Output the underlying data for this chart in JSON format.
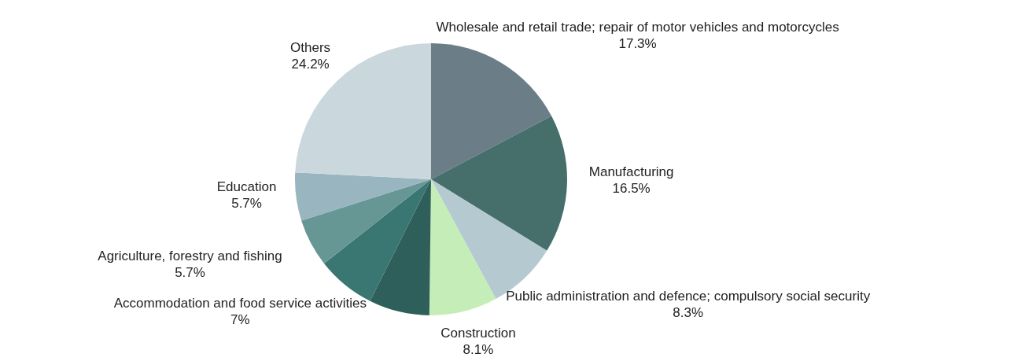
{
  "chart_data": {
    "type": "pie",
    "categories": [
      "Wholesale and retail trade; repair of motor vehicles and motorcycles",
      "Manufacturing",
      "Public administration and defence; compulsory social security",
      "Construction",
      null,
      "Accommodation and food service activities",
      "Agriculture, forestry and fishing",
      "Education",
      "Others"
    ],
    "values": [
      17.3,
      16.5,
      8.3,
      8.1,
      7.2,
      7,
      5.7,
      5.7,
      24.2
    ],
    "value_labels": [
      "17.3%",
      "16.5%",
      "8.3%",
      "8.1%",
      null,
      "7%",
      "5.7%",
      "5.7%",
      "24.2%"
    ],
    "colors": [
      "#6b7d87",
      "#466f6c",
      "#b5c9d0",
      "#c5edb8",
      "#2f5f5a",
      "#3a7672",
      "#669795",
      "#99b5bf",
      "#cad8de"
    ]
  }
}
